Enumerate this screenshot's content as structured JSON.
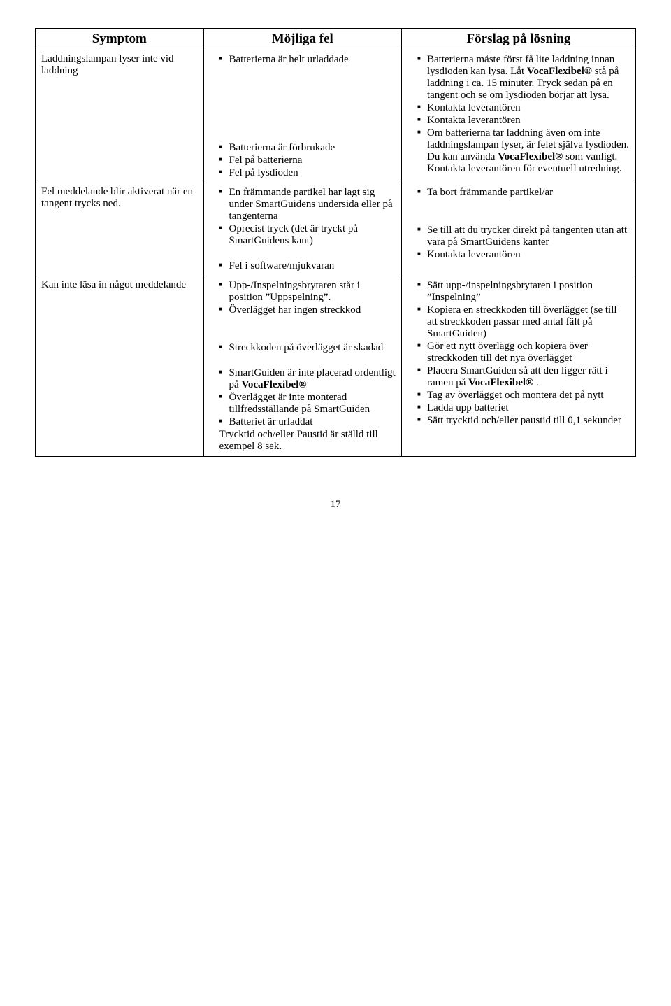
{
  "table": {
    "headers": [
      "Symptom",
      "Möjliga fel",
      "Förslag på lösning"
    ],
    "rows": [
      {
        "symptom": "Laddningslampan lyser inte vid laddning",
        "faults": [
          "Batterierna är helt urladdade",
          "Batterierna är förbrukade",
          "Fel på batterierna",
          "Fel på lysdioden"
        ],
        "fault_gap_after": [
          6,
          0,
          0,
          0
        ],
        "solutions": [
          "Batterierna måste först få lite laddning innan lysdioden kan lysa. Låt <b>VocaFlexibel®</b> stå på laddning i ca. 15 minuter. Tryck sedan på en tangent och se om lysdioden börjar att lysa.",
          "Kontakta leverantören",
          "Kontakta leverantören",
          "Om batterierna tar laddning även om inte laddningslampan lyser, är felet själva lysdioden. Du kan använda <b>VocaFlexibel®</b> som vanligt. Kontakta leverantören för eventuell utredning."
        ]
      },
      {
        "symptom": "Fel meddelande blir aktiverat när en tangent trycks ned.",
        "faults": [
          "En främmande partikel har lagt sig under SmartGuidens undersida eller på tangenterna",
          "Oprecist tryck (det är tryckt på SmartGuidens kant)",
          "Fel i software/mjukvaran"
        ],
        "fault_gap_after": [
          0,
          1,
          0
        ],
        "solutions": [
          "Ta bort främmande partikel/ar",
          "Se till att du trycker direkt på tangenten utan att vara på SmartGuidens kanter",
          "Kontakta leverantören"
        ],
        "solution_gap_after": [
          2,
          0,
          0
        ]
      },
      {
        "symptom": "Kan inte läsa in något meddelande",
        "faults": [
          "Upp-/Inspelningsbrytaren står i position ”Uppspelning”.",
          "Överlägget har ingen streckkod",
          "Streckkoden på överlägget är skadad",
          "SmartGuiden är inte placerad ordentligt på <b>VocaFlexibel®</b>",
          "Överlägget är inte monterad tillfredsställande på SmartGuiden",
          "Batteriet är urladdat"
        ],
        "fault_tail": "Trycktid och/eller Paustid är ställd till exempel 8 sek.",
        "fault_gap_after": [
          0,
          2,
          1,
          0,
          0,
          0
        ],
        "solutions": [
          "Sätt upp-/inspelningsbrytaren i position ”Inspelning”",
          "Kopiera en streckkoden till överlägget (se till att streckkoden passar med antal fält på SmartGuiden)",
          "Gör ett nytt överlägg och kopiera över streckkoden till det nya överlägget",
          "Placera SmartGuiden så att den ligger rätt i ramen på <b>VocaFlexibel®</b> .",
          "Tag av överlägget och montera det på nytt",
          "Ladda upp batteriet",
          "Sätt trycktid och/eller paustid till 0,1 sekunder"
        ]
      }
    ]
  },
  "page_number": "17"
}
